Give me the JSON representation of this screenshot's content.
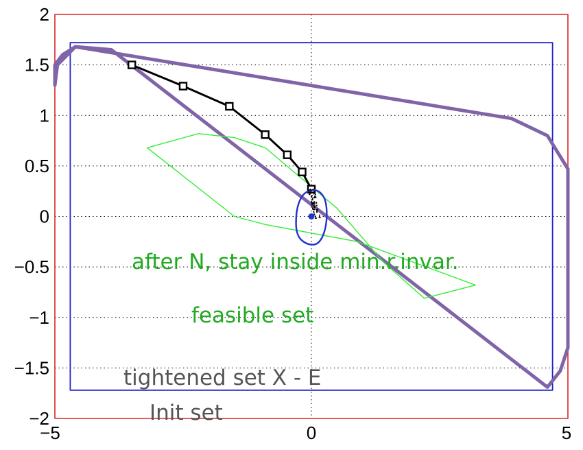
{
  "chart_data": {
    "type": "line",
    "title": "",
    "xlabel": "",
    "ylabel": "",
    "xlim": [
      -5,
      5
    ],
    "ylim": [
      -2,
      2
    ],
    "xticks": [
      -5,
      0,
      5
    ],
    "xtick_labels": [
      "−5",
      "0",
      "5"
    ],
    "yticks": [
      -2,
      -1.5,
      -1,
      -0.5,
      0,
      0.5,
      1,
      1.5,
      2
    ],
    "ytick_labels": [
      "−2",
      "−1.5",
      "−1",
      "−0.5",
      "0",
      "0.5",
      "1",
      "1.5",
      "2"
    ],
    "grid": "dotted",
    "colors": {
      "state_constraint": "#dd2222",
      "tightened_set": "#2222cc",
      "init_set": "#8064a8",
      "feasible_set": "#33ee33",
      "trajectory": "#000000",
      "min_invariant": "#2233cc",
      "annotation_green": "#22aa22",
      "annotation_gray": "#555555"
    },
    "series": [
      {
        "role": "state_constraint",
        "kind": "polygon",
        "x": [
          -5,
          5,
          5,
          -5
        ],
        "y": [
          -2,
          -2,
          2,
          2
        ]
      },
      {
        "role": "tightened_set",
        "kind": "polygon",
        "x": [
          -4.7,
          4.7,
          4.7,
          -4.7
        ],
        "y": [
          -1.72,
          -1.72,
          1.72,
          1.72
        ]
      },
      {
        "role": "init_set",
        "kind": "polygon",
        "x": [
          -5.0,
          -4.95,
          -4.6,
          -3.9,
          4.6,
          4.85,
          5.0,
          5.0,
          4.6,
          3.9,
          -4.6,
          -4.85,
          -5.0
        ],
        "y": [
          1.3,
          1.5,
          1.68,
          1.65,
          -1.69,
          -1.53,
          -1.3,
          0.47,
          0.8,
          0.97,
          1.68,
          1.6,
          1.5
        ]
      },
      {
        "role": "feasible_set",
        "kind": "polygon",
        "x": [
          -3.2,
          -2.2,
          -1.5,
          -0.9,
          0.5,
          1.4,
          2.2,
          3.2,
          0.9,
          -0.9,
          -1.5
        ],
        "y": [
          0.68,
          0.82,
          0.78,
          0.68,
          0.08,
          -0.45,
          -0.81,
          -0.68,
          -0.25,
          -0.08,
          0.0
        ]
      },
      {
        "role": "trajectory",
        "kind": "line",
        "x": [
          -3.5,
          -2.5,
          -1.6,
          -0.9,
          -0.47,
          -0.18,
          0.0
        ],
        "y": [
          1.5,
          1.29,
          1.09,
          0.81,
          0.61,
          0.44,
          0.27
        ]
      },
      {
        "role": "min_invariant",
        "kind": "closed_curve",
        "x": [
          -0.2,
          -0.05,
          0.15,
          0.3,
          0.3,
          0.15,
          -0.1,
          -0.3,
          -0.3
        ],
        "y": [
          0.2,
          0.26,
          0.26,
          0.15,
          -0.1,
          -0.28,
          -0.28,
          -0.18,
          0.05
        ]
      },
      {
        "role": "origin",
        "kind": "point",
        "x": [
          0.0
        ],
        "y": [
          0.0
        ]
      }
    ],
    "annotations": [
      {
        "text": "after N, stay inside min.r.invar.",
        "color": "annotation_green"
      },
      {
        "text": "feasible set",
        "color": "annotation_green"
      },
      {
        "text": "tightened set X - E",
        "color": "annotation_gray"
      },
      {
        "text": "Init set",
        "color": "annotation_gray"
      }
    ]
  }
}
